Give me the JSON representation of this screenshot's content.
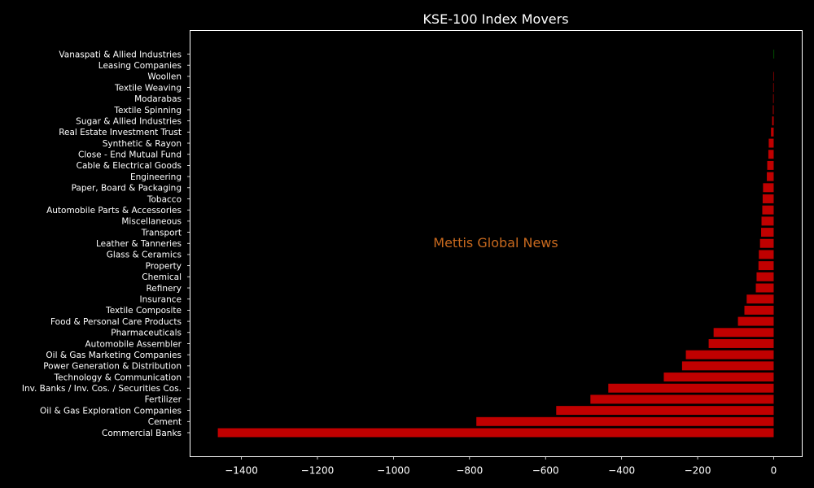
{
  "colors": {
    "background": "#000000",
    "axes": "#ffffff",
    "negative": "#c00000",
    "positive": "#008000",
    "watermark": "#c8691e"
  },
  "watermark": "Mettis Global News",
  "chart_data": {
    "type": "bar",
    "orientation": "horizontal",
    "title": "KSE-100 Index Movers",
    "xlabel": "",
    "ylabel": "",
    "xlim": [
      -1535,
      75
    ],
    "xticks": [
      -1400,
      -1200,
      -1000,
      -800,
      -600,
      -400,
      -200,
      0
    ],
    "grid": false,
    "categories": [
      "Commercial Banks",
      "Cement",
      "Oil & Gas Exploration Companies",
      "Fertilizer",
      "Inv. Banks / Inv. Cos. / Securities Cos.",
      "Technology & Communication",
      "Power Generation & Distribution",
      "Oil & Gas Marketing Companies",
      "Automobile Assembler",
      "Pharmaceuticals",
      "Food & Personal Care Products",
      "Textile Composite",
      "Insurance",
      "Refinery",
      "Chemical",
      "Property",
      "Glass & Ceramics",
      "Leather & Tanneries",
      "Transport",
      "Miscellaneous",
      "Automobile Parts & Accessories",
      "Tobacco",
      "Paper, Board & Packaging",
      "Engineering",
      "Cable & Electrical Goods",
      "Close - End Mutual Fund",
      "Synthetic & Rayon",
      "Real Estate Investment Trust",
      "Sugar & Allied Industries",
      "Textile Spinning",
      "Modarabas",
      "Textile Weaving",
      "Woollen",
      "Leasing Companies",
      "Vanaspati & Allied Industries"
    ],
    "values": [
      -1462,
      -782,
      -572,
      -482,
      -435,
      -289,
      -241,
      -231,
      -171,
      -158,
      -94,
      -77,
      -71,
      -47,
      -45,
      -40,
      -39,
      -36,
      -33,
      -32,
      -30,
      -29,
      -28,
      -18,
      -17,
      -14,
      -13,
      -7,
      -4,
      -2,
      -1.5,
      -1.2,
      -1,
      0,
      1
    ]
  }
}
